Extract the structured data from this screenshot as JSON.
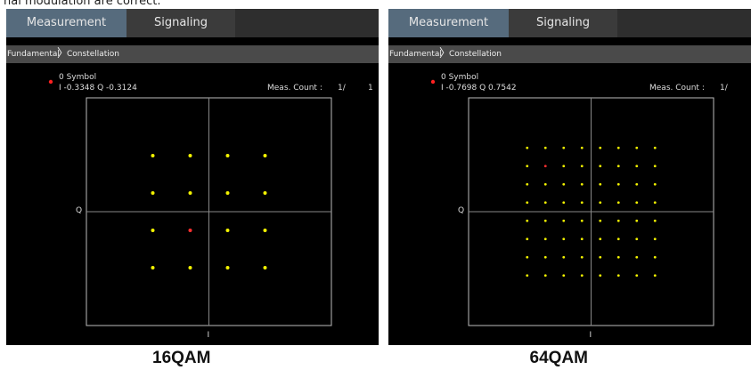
{
  "caption": "nal modulation are correct.",
  "panels": [
    {
      "tabs": [
        "Measurement",
        "Signaling"
      ],
      "breadcrumb": [
        "Fundamental",
        "Constellation"
      ],
      "marker_label": "0 Symbol",
      "marker_value": "I -0.3348 Q -0.3124",
      "meas_count_label": "Meas. Count :",
      "meas_count": "1/",
      "meas_total": "1",
      "axis_q": "Q",
      "axis_i": "I",
      "label": "16QAM"
    },
    {
      "tabs": [
        "Measurement",
        "Signaling"
      ],
      "breadcrumb": [
        "Fundamental",
        "Constellation"
      ],
      "marker_label": "0 Symbol",
      "marker_value": "I -0.7698 Q 0.7542",
      "meas_count_label": "Meas. Count :",
      "meas_count": "1/",
      "axis_q": "Q",
      "axis_i": "I",
      "label": "64QAM"
    }
  ]
}
